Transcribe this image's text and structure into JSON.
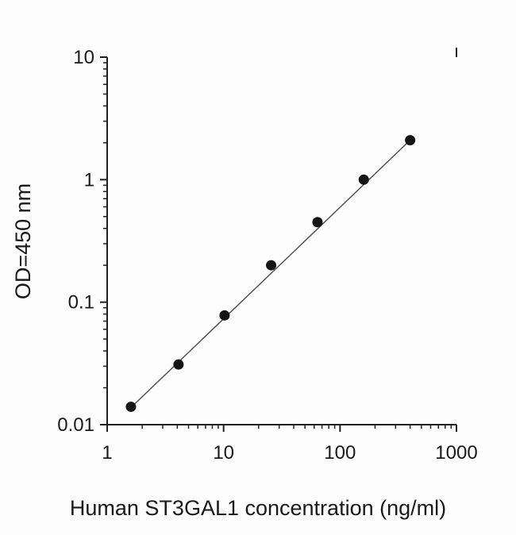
{
  "chart_data": {
    "type": "scatter",
    "title": "",
    "xlabel": "Human ST3GAL1 concentration (ng/ml)",
    "ylabel": "OD=450 nm",
    "x_scale": "log",
    "y_scale": "log",
    "xlim": [
      1,
      1000
    ],
    "ylim": [
      0.01,
      10
    ],
    "x_ticks": [
      1,
      10,
      100,
      1000
    ],
    "x_tick_labels": [
      "1",
      "10",
      "100",
      "1000"
    ],
    "y_ticks": [
      0.01,
      0.1,
      1,
      10
    ],
    "y_tick_labels": [
      "0.01",
      "0.1",
      "1",
      "10"
    ],
    "grid": false,
    "legend": "none",
    "points": [
      {
        "x": 1.6,
        "y": 0.014
      },
      {
        "x": 4.1,
        "y": 0.031
      },
      {
        "x": 10.2,
        "y": 0.078
      },
      {
        "x": 25.6,
        "y": 0.2
      },
      {
        "x": 64,
        "y": 0.45
      },
      {
        "x": 160,
        "y": 1.0
      },
      {
        "x": 400,
        "y": 2.1
      }
    ],
    "fit_line": {
      "from": {
        "x": 1.6,
        "y": 0.0138
      },
      "to": {
        "x": 400,
        "y": 2.1
      }
    },
    "marker": {
      "shape": "circle",
      "color": "#141414",
      "radius": 6.5
    },
    "line_color": "#4a4a4a",
    "axis_color": "#1f1f1f",
    "text_color": "#1a1a1a"
  }
}
